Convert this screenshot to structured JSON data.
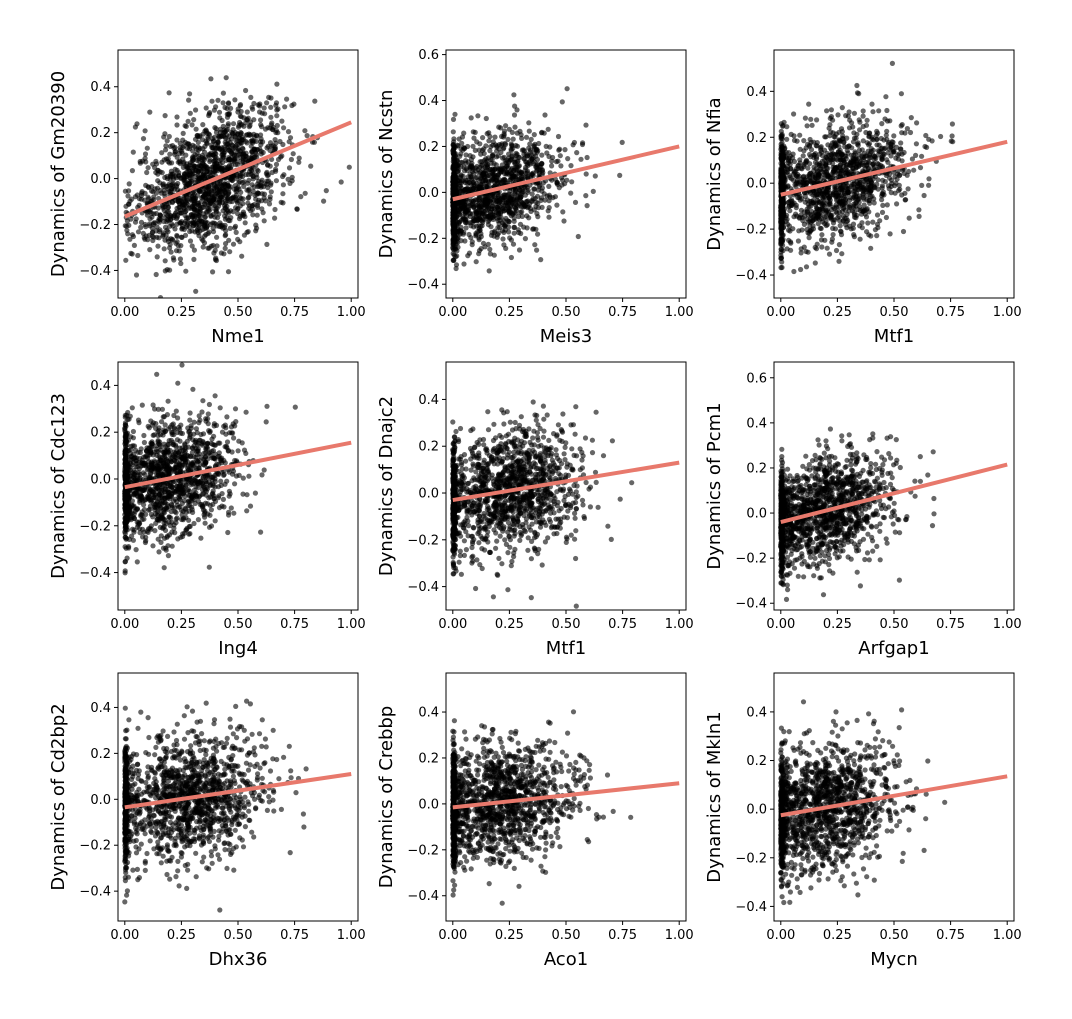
{
  "figure": {
    "point_color": "#000000",
    "point_opacity": 0.6,
    "fit_line_color": "#e8796c"
  },
  "chart_data": [
    {
      "type": "scatter",
      "xlabel": "Nme1",
      "ylabel": "Dynamics of Gm20390",
      "xlim": [
        -0.03,
        1.03
      ],
      "ylim": [
        -0.52,
        0.56
      ],
      "xticks": [
        0.0,
        0.25,
        0.5,
        0.75,
        1.0
      ],
      "xtick_labels": [
        "0.00",
        "0.25",
        "0.50",
        "0.75",
        "1.00"
      ],
      "yticks": [
        -0.4,
        -0.2,
        0.0,
        0.2,
        0.4
      ],
      "ytick_labels": [
        "−0.4",
        "−0.2",
        "0.0",
        "0.2",
        "0.4"
      ],
      "fit_line": {
        "x": [
          0.0,
          1.0
        ],
        "y": [
          -0.165,
          0.245
        ]
      },
      "scatter": {
        "x_center": 0.38,
        "x_spread": 0.17,
        "y_spread": 0.14,
        "n_points": 1500,
        "zero_stripe": false
      },
      "grid": false
    },
    {
      "type": "scatter",
      "xlabel": "Meis3",
      "ylabel": "Dynamics of Ncstn",
      "xlim": [
        -0.03,
        1.03
      ],
      "ylim": [
        -0.46,
        0.62
      ],
      "xticks": [
        0.0,
        0.25,
        0.5,
        0.75,
        1.0
      ],
      "xtick_labels": [
        "0.00",
        "0.25",
        "0.50",
        "0.75",
        "1.00"
      ],
      "yticks": [
        -0.4,
        -0.2,
        0.0,
        0.2,
        0.4,
        0.6
      ],
      "ytick_labels": [
        "−0.4",
        "−0.2",
        "0.0",
        "0.2",
        "0.4",
        "0.6"
      ],
      "fit_line": {
        "x": [
          0.0,
          1.0
        ],
        "y": [
          -0.03,
          0.2
        ]
      },
      "scatter": {
        "x_center": 0.18,
        "x_spread": 0.15,
        "y_spread": 0.12,
        "n_points": 1500,
        "zero_stripe": true
      },
      "grid": false
    },
    {
      "type": "scatter",
      "xlabel": "Mtf1",
      "ylabel": "Dynamics of Nfia",
      "xlim": [
        -0.03,
        1.03
      ],
      "ylim": [
        -0.5,
        0.58
      ],
      "xticks": [
        0.0,
        0.25,
        0.5,
        0.75,
        1.0
      ],
      "xtick_labels": [
        "0.00",
        "0.25",
        "0.50",
        "0.75",
        "1.00"
      ],
      "yticks": [
        -0.4,
        -0.2,
        0.0,
        0.2,
        0.4
      ],
      "ytick_labels": [
        "−0.4",
        "−0.2",
        "0.0",
        "0.2",
        "0.4"
      ],
      "fit_line": {
        "x": [
          0.0,
          1.0
        ],
        "y": [
          -0.05,
          0.18
        ]
      },
      "scatter": {
        "x_center": 0.25,
        "x_spread": 0.16,
        "y_spread": 0.13,
        "n_points": 1500,
        "zero_stripe": true
      },
      "grid": false
    },
    {
      "type": "scatter",
      "xlabel": "Ing4",
      "ylabel": "Dynamics of Cdc123",
      "xlim": [
        -0.03,
        1.03
      ],
      "ylim": [
        -0.56,
        0.5
      ],
      "xticks": [
        0.0,
        0.25,
        0.5,
        0.75,
        1.0
      ],
      "xtick_labels": [
        "0.00",
        "0.25",
        "0.50",
        "0.75",
        "1.00"
      ],
      "yticks": [
        -0.4,
        -0.2,
        0.0,
        0.2,
        0.4
      ],
      "ytick_labels": [
        "−0.4",
        "−0.2",
        "0.0",
        "0.2",
        "0.4"
      ],
      "fit_line": {
        "x": [
          0.0,
          1.0
        ],
        "y": [
          -0.035,
          0.155
        ]
      },
      "scatter": {
        "x_center": 0.2,
        "x_spread": 0.15,
        "y_spread": 0.13,
        "n_points": 1500,
        "zero_stripe": true
      },
      "grid": false
    },
    {
      "type": "scatter",
      "xlabel": "Mtf1",
      "ylabel": "Dynamics of Dnajc2",
      "xlim": [
        -0.03,
        1.03
      ],
      "ylim": [
        -0.5,
        0.56
      ],
      "xticks": [
        0.0,
        0.25,
        0.5,
        0.75,
        1.0
      ],
      "xtick_labels": [
        "0.00",
        "0.25",
        "0.50",
        "0.75",
        "1.00"
      ],
      "yticks": [
        -0.4,
        -0.2,
        0.0,
        0.2,
        0.4
      ],
      "ytick_labels": [
        "−0.4",
        "−0.2",
        "0.0",
        "0.2",
        "0.4"
      ],
      "fit_line": {
        "x": [
          0.0,
          1.0
        ],
        "y": [
          -0.03,
          0.13
        ]
      },
      "scatter": {
        "x_center": 0.25,
        "x_spread": 0.16,
        "y_spread": 0.13,
        "n_points": 1500,
        "zero_stripe": true
      },
      "grid": false
    },
    {
      "type": "scatter",
      "xlabel": "Arfgap1",
      "ylabel": "Dynamics of Pcm1",
      "xlim": [
        -0.03,
        1.03
      ],
      "ylim": [
        -0.43,
        0.67
      ],
      "xticks": [
        0.0,
        0.25,
        0.5,
        0.75,
        1.0
      ],
      "xtick_labels": [
        "0.00",
        "0.25",
        "0.50",
        "0.75",
        "1.00"
      ],
      "yticks": [
        -0.4,
        -0.2,
        0.0,
        0.2,
        0.4,
        0.6
      ],
      "ytick_labels": [
        "−0.4",
        "−0.2",
        "0.0",
        "0.2",
        "0.4",
        "0.6"
      ],
      "fit_line": {
        "x": [
          0.0,
          1.0
        ],
        "y": [
          -0.04,
          0.215
        ]
      },
      "scatter": {
        "x_center": 0.2,
        "x_spread": 0.15,
        "y_spread": 0.12,
        "n_points": 1500,
        "zero_stripe": true
      },
      "grid": false
    },
    {
      "type": "scatter",
      "xlabel": "Dhx36",
      "ylabel": "Dynamics of Cd2bp2",
      "xlim": [
        -0.03,
        1.03
      ],
      "ylim": [
        -0.53,
        0.55
      ],
      "xticks": [
        0.0,
        0.25,
        0.5,
        0.75,
        1.0
      ],
      "xtick_labels": [
        "0.00",
        "0.25",
        "0.50",
        "0.75",
        "1.00"
      ],
      "yticks": [
        -0.4,
        -0.2,
        0.0,
        0.2,
        0.4
      ],
      "ytick_labels": [
        "−0.4",
        "−0.2",
        "0.0",
        "0.2",
        "0.4"
      ],
      "fit_line": {
        "x": [
          0.0,
          1.0
        ],
        "y": [
          -0.035,
          0.11
        ]
      },
      "scatter": {
        "x_center": 0.28,
        "x_spread": 0.17,
        "y_spread": 0.13,
        "n_points": 1500,
        "zero_stripe": true
      },
      "grid": false
    },
    {
      "type": "scatter",
      "xlabel": "Aco1",
      "ylabel": "Dynamics of Crebbp",
      "xlim": [
        -0.03,
        1.03
      ],
      "ylim": [
        -0.51,
        0.57
      ],
      "xticks": [
        0.0,
        0.25,
        0.5,
        0.75,
        1.0
      ],
      "xtick_labels": [
        "0.00",
        "0.25",
        "0.50",
        "0.75",
        "1.00"
      ],
      "yticks": [
        -0.4,
        -0.2,
        0.0,
        0.2,
        0.4
      ],
      "ytick_labels": [
        "−0.4",
        "−0.2",
        "0.0",
        "0.2",
        "0.4"
      ],
      "fit_line": {
        "x": [
          0.0,
          1.0
        ],
        "y": [
          -0.015,
          0.09
        ]
      },
      "scatter": {
        "x_center": 0.22,
        "x_spread": 0.16,
        "y_spread": 0.13,
        "n_points": 1500,
        "zero_stripe": true
      },
      "grid": false
    },
    {
      "type": "scatter",
      "xlabel": "Mycn",
      "ylabel": "Dynamics of Mkln1",
      "xlim": [
        -0.03,
        1.03
      ],
      "ylim": [
        -0.46,
        0.56
      ],
      "xticks": [
        0.0,
        0.25,
        0.5,
        0.75,
        1.0
      ],
      "xtick_labels": [
        "0.00",
        "0.25",
        "0.50",
        "0.75",
        "1.00"
      ],
      "yticks": [
        -0.4,
        -0.2,
        0.0,
        0.2,
        0.4
      ],
      "ytick_labels": [
        "−0.4",
        "−0.2",
        "0.0",
        "0.2",
        "0.4"
      ],
      "fit_line": {
        "x": [
          0.0,
          1.0
        ],
        "y": [
          -0.025,
          0.135
        ]
      },
      "scatter": {
        "x_center": 0.2,
        "x_spread": 0.15,
        "y_spread": 0.13,
        "n_points": 1500,
        "zero_stripe": true
      },
      "grid": false
    }
  ]
}
